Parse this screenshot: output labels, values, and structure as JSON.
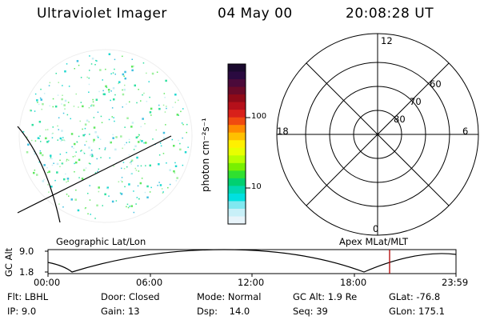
{
  "header": {
    "title": "Ultraviolet Imager",
    "date": "04 May 00",
    "time": "20:08:28 UT"
  },
  "image_panel": {
    "label": "Geographic Lat/Lon"
  },
  "colorbar": {
    "unit_label": "photon cm⁻²s⁻¹",
    "ticks": [
      "100",
      "10"
    ],
    "colors": [
      "#1a0a2e",
      "#2a0a40",
      "#4b0a3a",
      "#6b0a28",
      "#900a18",
      "#b5101a",
      "#d8201a",
      "#f04a10",
      "#ff8a00",
      "#ffc000",
      "#fff000",
      "#e8ff00",
      "#b8ff00",
      "#78f000",
      "#30e030",
      "#00d070",
      "#00d8b0",
      "#00e0e0",
      "#80e8f0",
      "#c8f0f8",
      "#e8f4fa"
    ]
  },
  "polar_plot": {
    "label": "Apex MLat/MLT",
    "mlt_labels": [
      "12",
      "18",
      "6",
      "0"
    ],
    "mlat_labels": [
      "60",
      "70",
      "80"
    ]
  },
  "altitude_plot": {
    "ylabel": "GC Alt",
    "yticks": [
      "9.0",
      "1.8"
    ],
    "xticks": [
      "00:00",
      "06:00",
      "12:00",
      "18:00",
      "23:59"
    ]
  },
  "info": {
    "filter": "Flt: LBHL",
    "door": "Door: Closed",
    "mode": "Mode: Normal",
    "gc_alt": "GC Alt: 1.9 Re",
    "glat": "GLat: -76.8",
    "ip": "IP: 9.0",
    "gain": "Gain: 13",
    "dsp": "Dsp:    14.0",
    "seq": "Seq: 39",
    "glon": "GLon: 175.1"
  },
  "colors": {
    "marker": "#b00000",
    "dots": "#30e0a0"
  }
}
